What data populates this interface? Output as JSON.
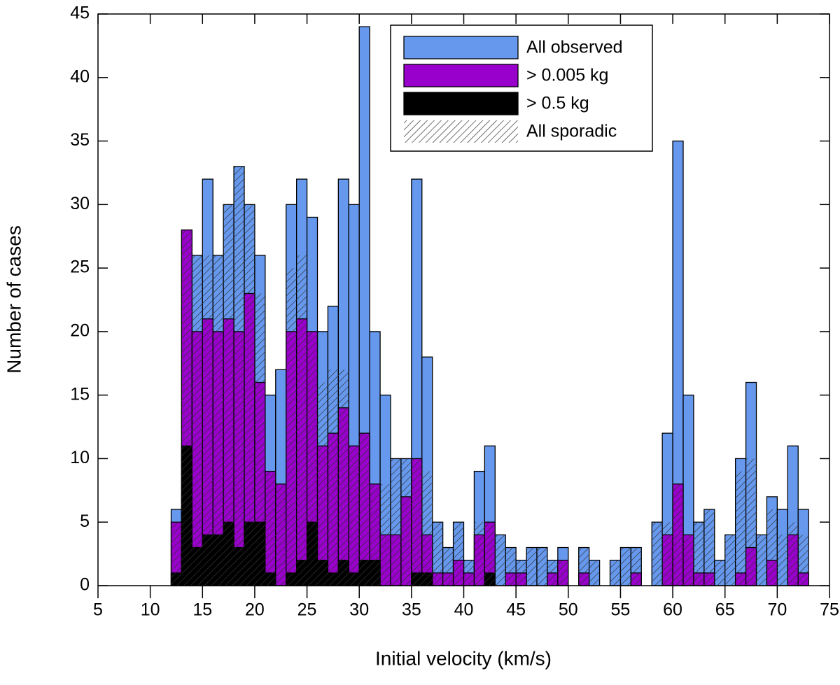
{
  "chart_data": {
    "type": "histogram",
    "x_label": "Initial velocity (km/s)",
    "y_label": "Number of cases",
    "bins": [
      12,
      13,
      14,
      15,
      16,
      17,
      18,
      19,
      20,
      21,
      22,
      23,
      24,
      25,
      26,
      27,
      28,
      29,
      30,
      31,
      32,
      33,
      34,
      35,
      36,
      37,
      38,
      39,
      40,
      41,
      42,
      43,
      44,
      45,
      46,
      47,
      48,
      49,
      50,
      51,
      52,
      53,
      54,
      55,
      56,
      57,
      58,
      59,
      60,
      61,
      62,
      63,
      64,
      65,
      66,
      67,
      68,
      69,
      70,
      71,
      72,
      73
    ],
    "series": [
      {
        "name": "All observed",
        "color": "#6699ee",
        "values": [
          6,
          28,
          26,
          32,
          26,
          30,
          33,
          30,
          26,
          15,
          17,
          30,
          32,
          29,
          20,
          22,
          32,
          30,
          44,
          20,
          15,
          10,
          10,
          32,
          18,
          5,
          3,
          5,
          2,
          9,
          11,
          4,
          3,
          2,
          3,
          3,
          2,
          3,
          0,
          3,
          2,
          0,
          2,
          3,
          3,
          0,
          5,
          12,
          35,
          15,
          5,
          6,
          2,
          4,
          10,
          16,
          4,
          7,
          6,
          11,
          6
        ]
      },
      {
        "name": "> 0.005 kg",
        "color": "#9900cc",
        "values": [
          5,
          28,
          20,
          21,
          20,
          21,
          20,
          23,
          16,
          9,
          8,
          20,
          21,
          20,
          11,
          12,
          14,
          11,
          12,
          8,
          4,
          4,
          7,
          10,
          4,
          1,
          1,
          2,
          1,
          4,
          5,
          0,
          1,
          1,
          0,
          0,
          1,
          2,
          0,
          1,
          0,
          0,
          0,
          0,
          1,
          0,
          0,
          4,
          8,
          4,
          1,
          1,
          0,
          0,
          1,
          3,
          0,
          2,
          0,
          4,
          1
        ]
      },
      {
        "name": "> 0.5 kg",
        "color": "#000000",
        "values": [
          1,
          11,
          3,
          4,
          4,
          5,
          3,
          5,
          5,
          1,
          0,
          1,
          2,
          5,
          2,
          1,
          2,
          1,
          2,
          2,
          0,
          0,
          0,
          1,
          1,
          0,
          0,
          0,
          0,
          0,
          1,
          0,
          0,
          0,
          0,
          0,
          0,
          0,
          0,
          0,
          0,
          0,
          0,
          0,
          0,
          0,
          0,
          0,
          0,
          0,
          0,
          0,
          0,
          0,
          0,
          0,
          0,
          0,
          0,
          0,
          0
        ]
      },
      {
        "name": "All sporadic",
        "color": "#333333",
        "pattern": "hatch",
        "values": [
          5,
          28,
          26,
          26,
          26,
          30,
          33,
          30,
          23,
          9,
          8,
          25,
          26,
          20,
          16,
          17,
          17,
          11,
          12,
          8,
          8,
          10,
          10,
          10,
          9,
          5,
          3,
          5,
          2,
          5,
          5,
          4,
          3,
          2,
          3,
          3,
          2,
          2,
          0,
          3,
          2,
          0,
          2,
          3,
          3,
          0,
          5,
          5,
          8,
          4,
          5,
          6,
          2,
          4,
          9,
          10,
          4,
          6,
          4,
          5,
          4
        ]
      }
    ],
    "xlim": [
      5,
      75
    ],
    "xticks": [
      5,
      10,
      15,
      20,
      25,
      30,
      35,
      40,
      45,
      50,
      55,
      60,
      65,
      70,
      75
    ],
    "ylim": [
      0,
      45
    ],
    "yticks": [
      0,
      5,
      10,
      15,
      20,
      25,
      30,
      35,
      40,
      45
    ],
    "legend": "top-center"
  }
}
